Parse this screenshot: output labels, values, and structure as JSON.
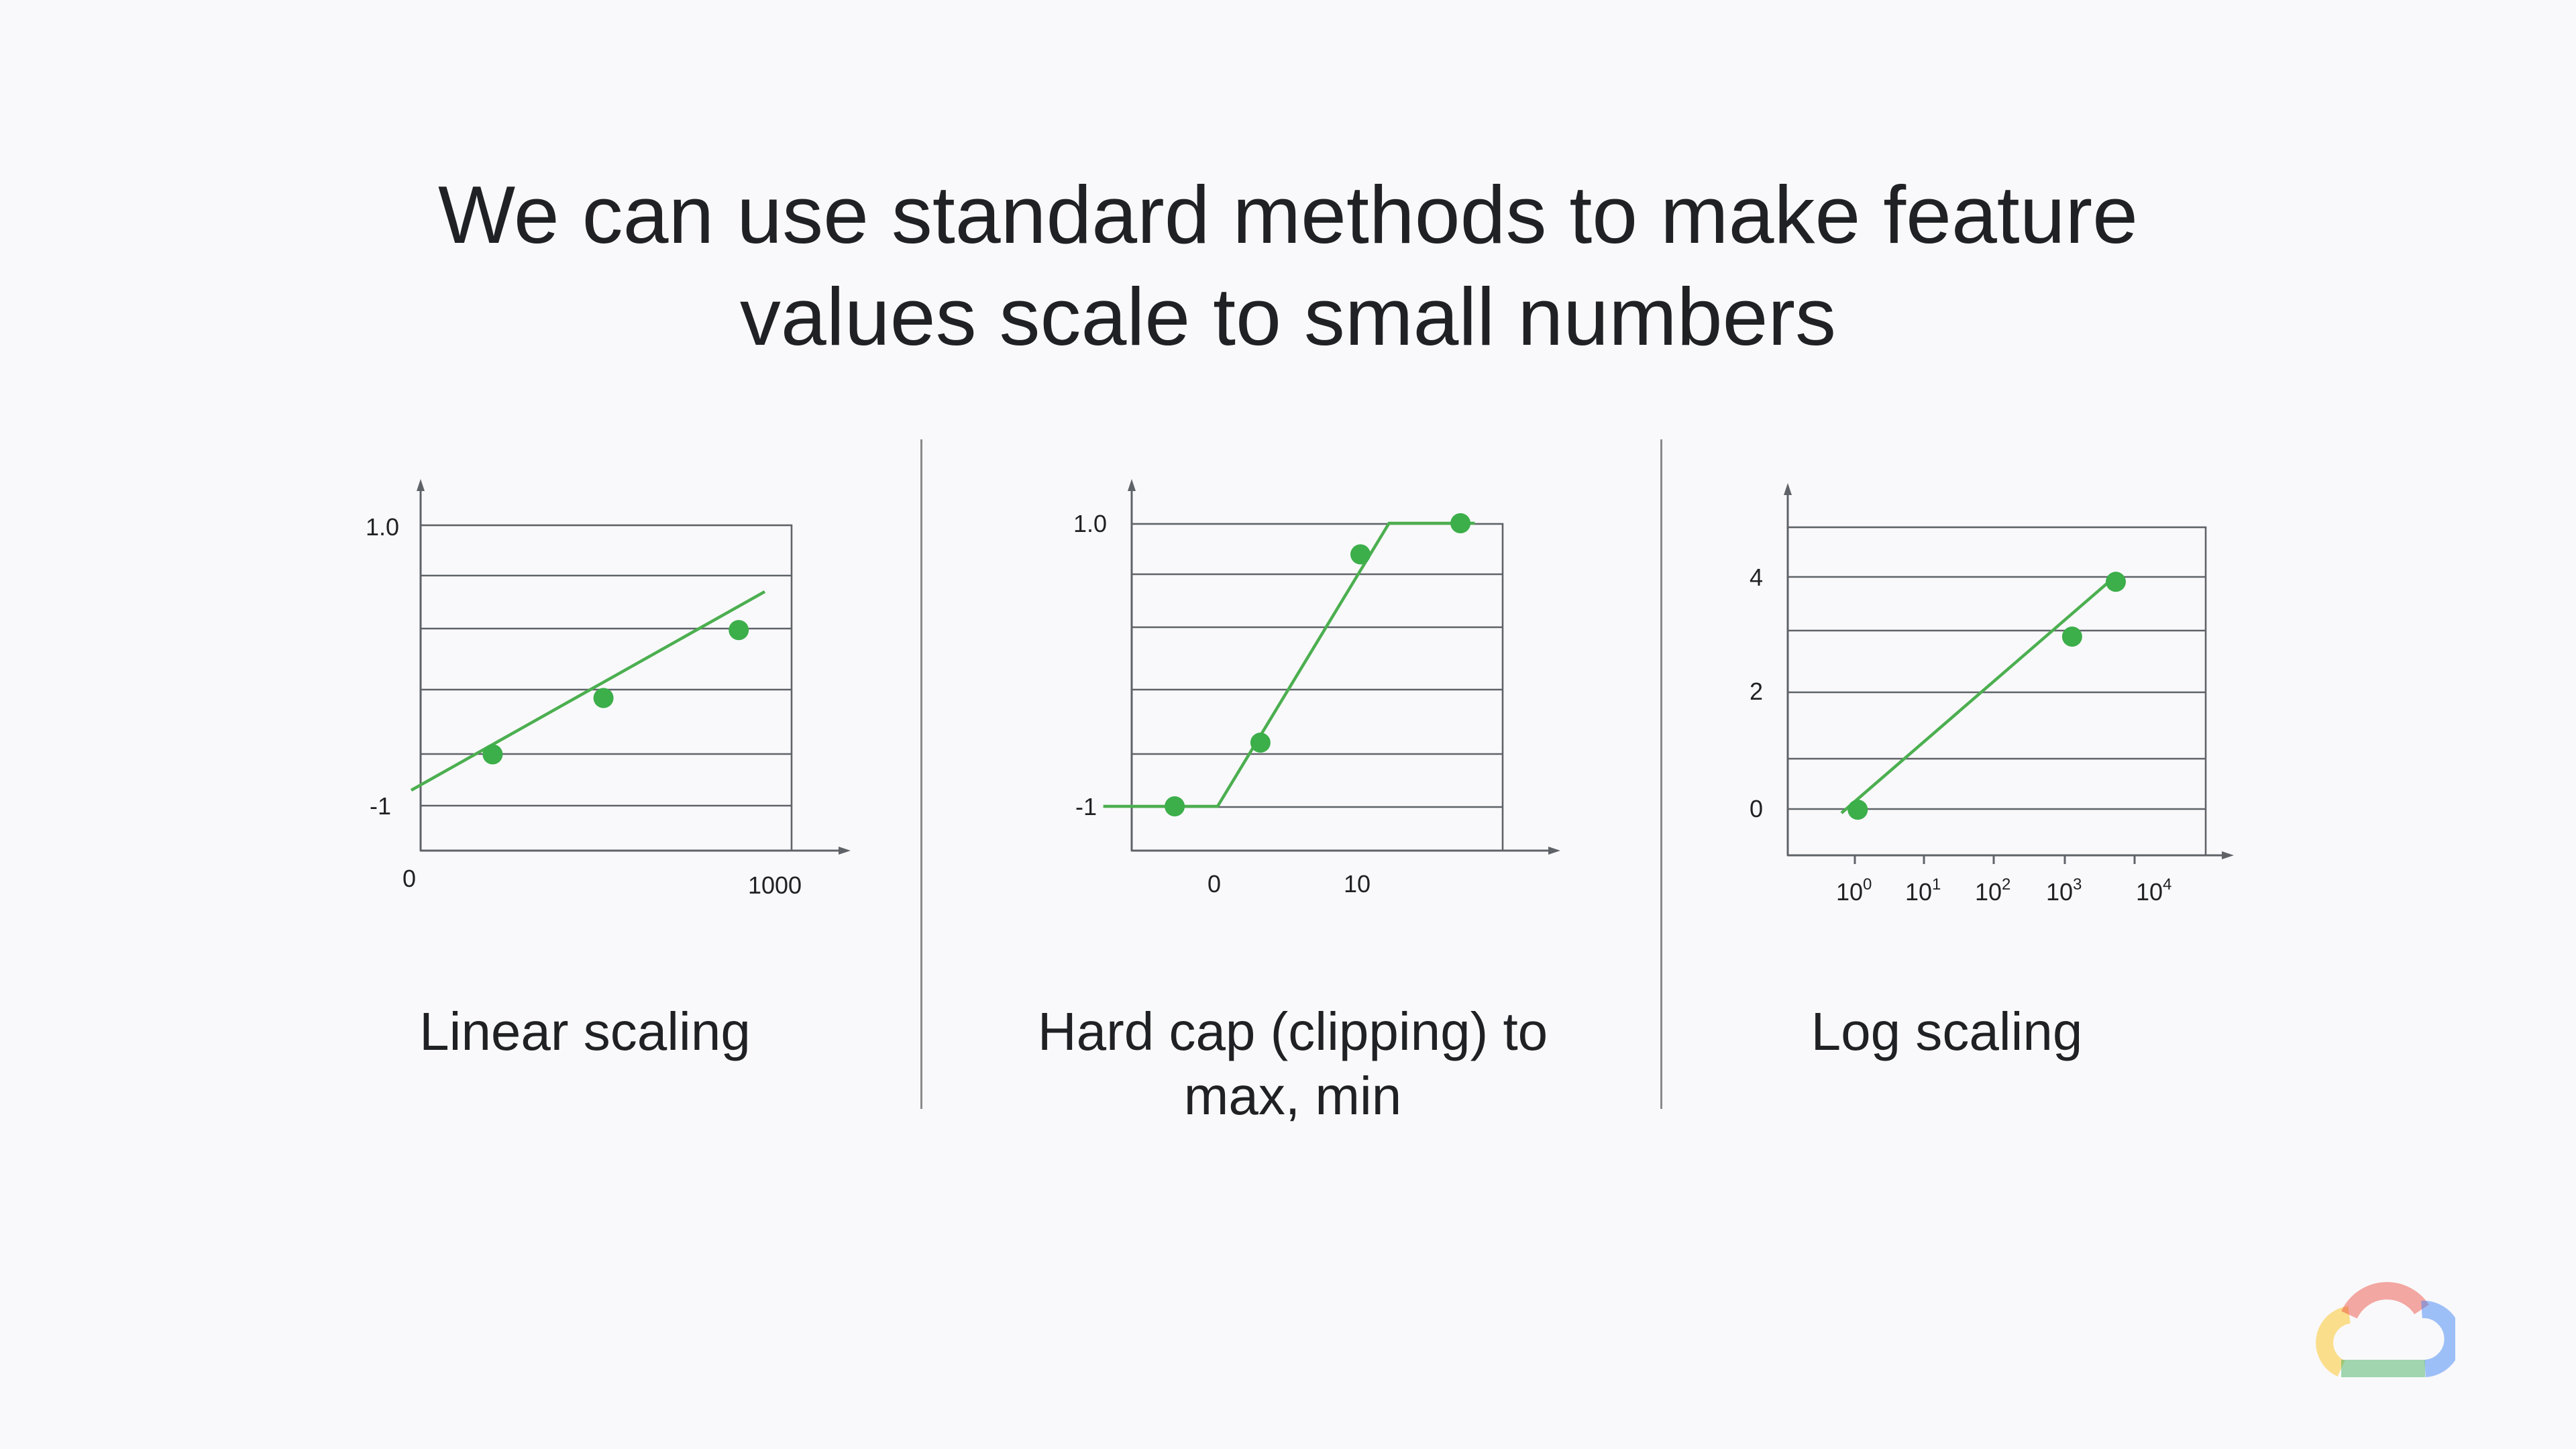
{
  "slide": {
    "title_line1": "We can use standard methods to make feature",
    "title_line2": "values scale to small numbers"
  },
  "logo": {
    "icon": "google-cloud-logo-icon"
  },
  "chart_data": [
    {
      "type": "line",
      "caption": "Linear scaling",
      "xtick_labels": [
        "0",
        "1000"
      ],
      "ytick_labels": [
        "-1",
        "1.0"
      ],
      "line": {
        "x": [
          0,
          1000
        ],
        "y": [
          -1.0,
          0.55
        ]
      },
      "points": {
        "x": [
          165,
          460,
          820
        ],
        "y": [
          -0.72,
          -0.28,
          0.25
        ]
      },
      "xlim": [
        0,
        1000
      ],
      "ylim": [
        -1.3,
        1.0
      ],
      "color": "#4caf50"
    },
    {
      "type": "line",
      "caption_line1": "Hard cap (clipping) to",
      "caption_line2": "max, min",
      "xtick_labels": [
        "0",
        "10"
      ],
      "ytick_labels": [
        "-1",
        "1.0"
      ],
      "line": {
        "x": [
          -8,
          0,
          12,
          18
        ],
        "y": [
          -1,
          -1,
          1,
          1
        ]
      },
      "points": {
        "x": [
          -3,
          3,
          10,
          17
        ],
        "y": [
          -1,
          -0.55,
          0.78,
          1
        ]
      },
      "xlim": [
        -6,
        20
      ],
      "ylim": [
        -1.3,
        1.0
      ],
      "color": "#4caf50"
    },
    {
      "type": "line",
      "caption": "Log scaling",
      "xtick_labels": [
        "10",
        "10",
        "10",
        "10",
        "10"
      ],
      "xtick_exponents": [
        "0",
        "1",
        "2",
        "3",
        "4"
      ],
      "ytick_labels": [
        "0",
        "2",
        "4"
      ],
      "xscale": "log",
      "line": {
        "x": [
          1,
          6000
        ],
        "y": [
          0,
          4
        ]
      },
      "points": {
        "x": [
          1.1,
          1300,
          5500
        ],
        "y": [
          0,
          3,
          3.95
        ]
      },
      "xlim": [
        0.3,
        30000
      ],
      "ylim": [
        -0.8,
        4.9
      ],
      "color": "#4caf50"
    }
  ]
}
